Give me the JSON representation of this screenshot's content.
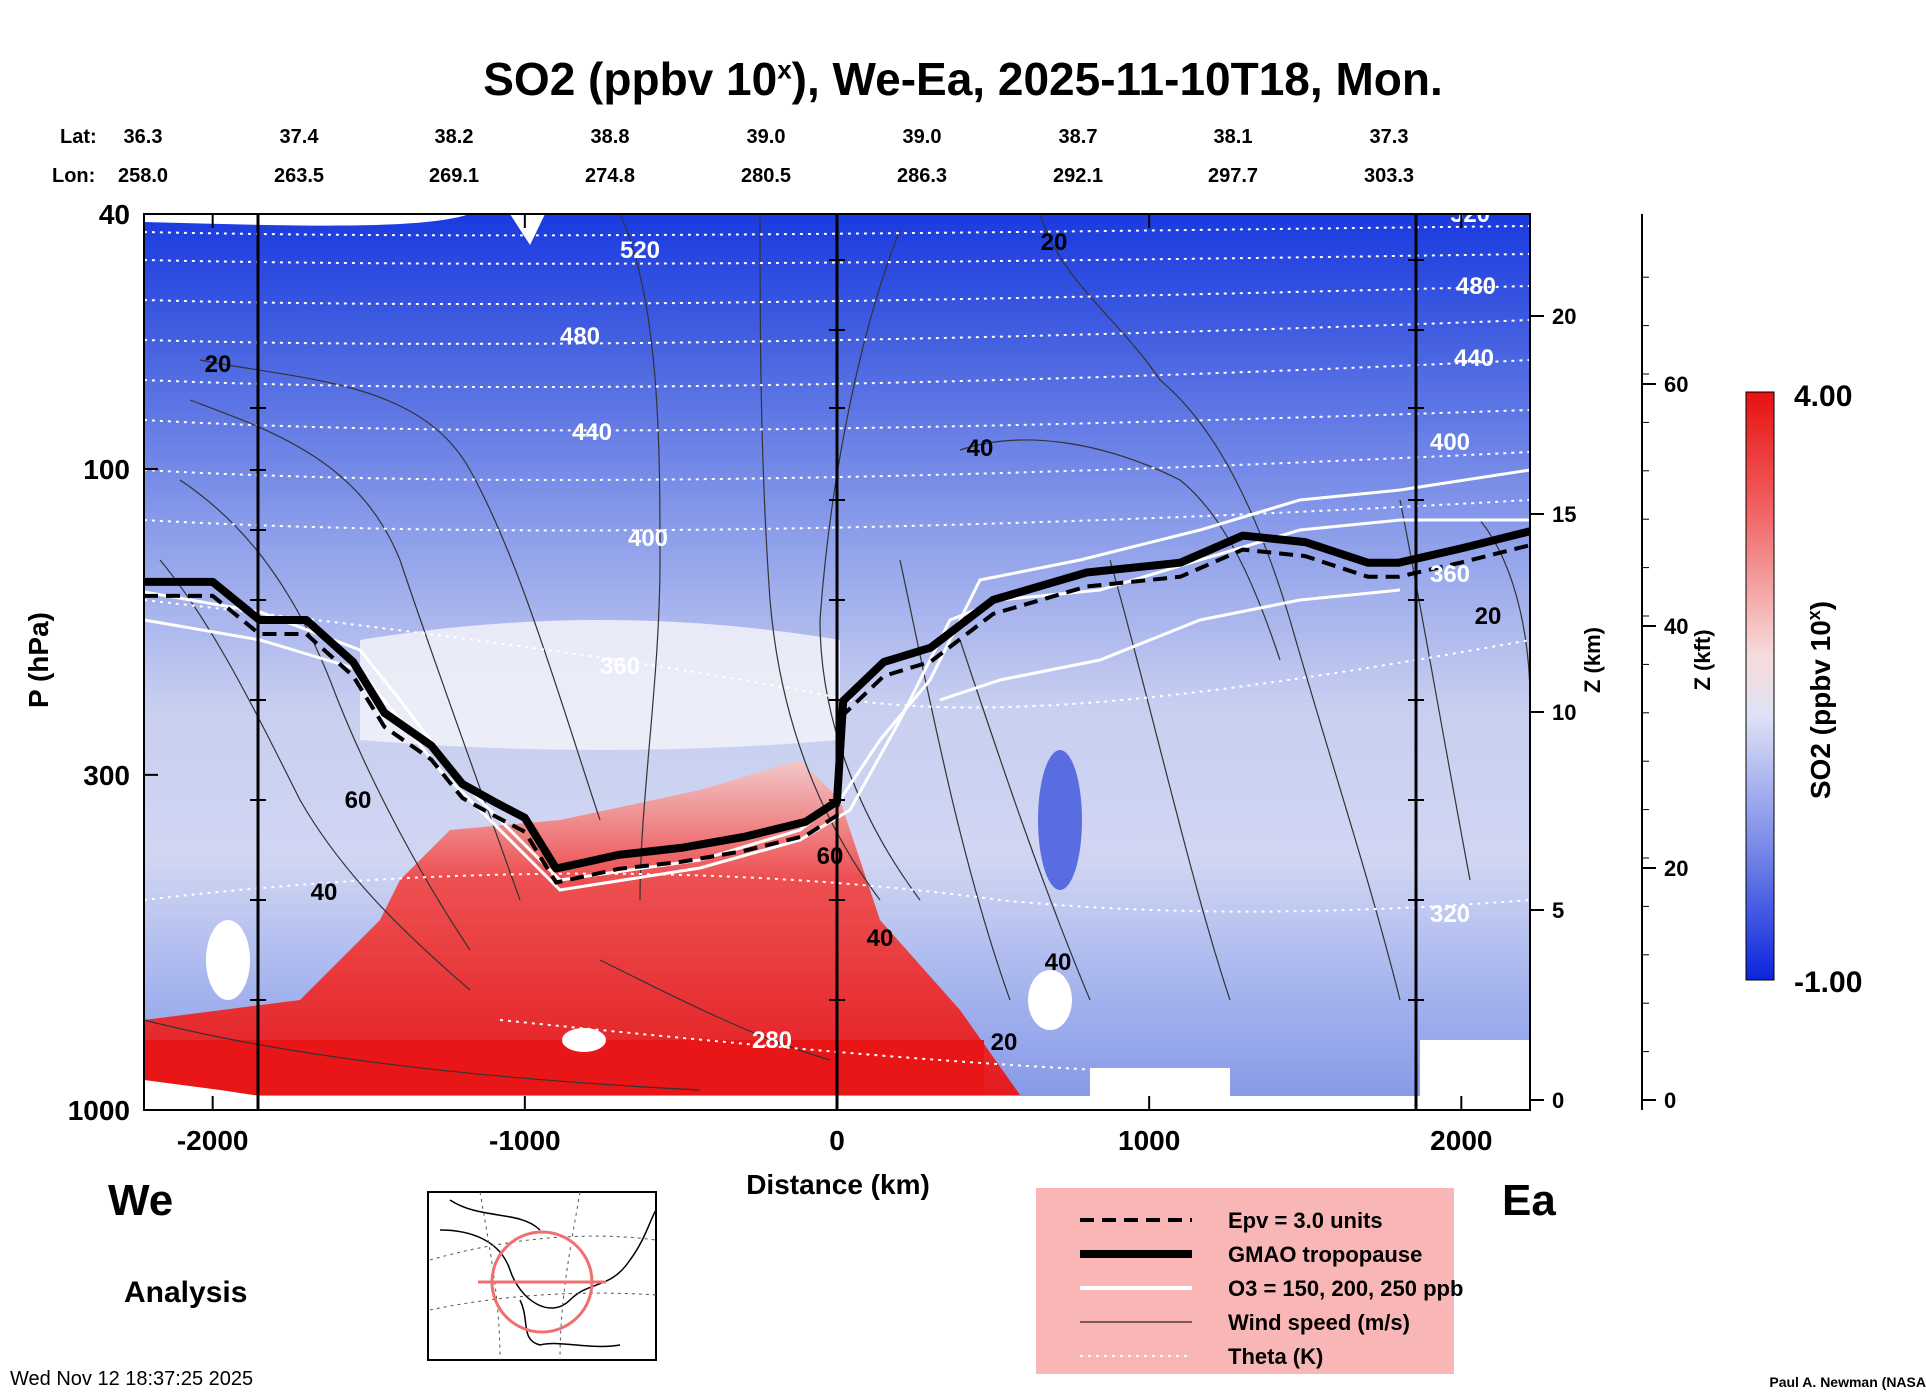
{
  "header": {
    "title_main": "SO2 (ppbv 10",
    "title_sup": "x",
    "title_rest": "), We-Ea, 2025-11-10T18, Mon.",
    "lat_label": "Lat:",
    "lon_label": "Lon:",
    "lat": [
      "36.3",
      "37.4",
      "38.2",
      "38.8",
      "39.0",
      "39.0",
      "38.7",
      "38.1",
      "37.3"
    ],
    "lon": [
      "258.0",
      "263.5",
      "269.1",
      "274.8",
      "280.5",
      "286.3",
      "292.1",
      "297.7",
      "303.3"
    ]
  },
  "chart_data": {
    "type": "heatmap",
    "variable": "SO2 (ppbv 10^x)",
    "xlabel": "Distance (km)",
    "ylabel": "P (hPa)",
    "xlim": [
      -2220,
      2220
    ],
    "ylim": [
      1000,
      40
    ],
    "yscale": "log",
    "x_ticks": [
      "-2000",
      "-1000",
      "0",
      "1000",
      "2000"
    ],
    "x_tick_values": [
      -2000,
      -1000,
      0,
      1000,
      2000
    ],
    "y_ticks": [
      "40",
      "100",
      "300",
      "1000"
    ],
    "y_tick_values": [
      40,
      100,
      300,
      1000
    ],
    "z_km_label": "Z (km)",
    "z_km_ticks": [
      "0",
      "5",
      "10",
      "15",
      "20"
    ],
    "z_kft_label": "Z (kft)",
    "z_kft_ticks": [
      "0",
      "20",
      "40",
      "60"
    ],
    "colorbar": {
      "min": -1.0,
      "max": 4.0,
      "min_label": "-1.00",
      "max_label": "4.00",
      "label_main": "SO2 (ppbv 10",
      "label_sup": "x",
      "label_rest": ")",
      "low_color": "#1030e0",
      "mid_color": "#f4f4f8",
      "high_color": "#ee1010"
    },
    "theta_levels": [
      "520",
      "480",
      "440",
      "400",
      "360",
      "320",
      "280"
    ],
    "wind_labels": [
      "20",
      "40",
      "60"
    ],
    "section_ends": {
      "left": "We",
      "right": "Ea"
    },
    "tropopause": [
      [
        -2220,
        150
      ],
      [
        -2000,
        150
      ],
      [
        -1850,
        172
      ],
      [
        -1700,
        172
      ],
      [
        -1550,
        200
      ],
      [
        -1450,
        240
      ],
      [
        -1300,
        270
      ],
      [
        -1200,
        310
      ],
      [
        -1100,
        330
      ],
      [
        -1000,
        350
      ],
      [
        -900,
        420
      ],
      [
        -800,
        410
      ],
      [
        -700,
        400
      ],
      [
        -500,
        390
      ],
      [
        -300,
        375
      ],
      [
        -100,
        355
      ],
      [
        0,
        330
      ],
      [
        20,
        230
      ],
      [
        150,
        200
      ],
      [
        300,
        190
      ],
      [
        500,
        160
      ],
      [
        800,
        145
      ],
      [
        1100,
        140
      ],
      [
        1300,
        127
      ],
      [
        1500,
        130
      ],
      [
        1700,
        140
      ],
      [
        1800,
        140
      ],
      [
        2000,
        133
      ],
      [
        2220,
        125
      ]
    ]
  },
  "legend": {
    "items": [
      "Epv = 3.0 units",
      "GMAO tropopause",
      "O3 = 150, 200, 250 ppb",
      "Wind speed (m/s)",
      "Theta (K)"
    ]
  },
  "footer": {
    "mode": "Analysis",
    "timestamp": "Wed Nov 12 18:37:25 2025",
    "credit": "Paul A. Newman (NASA"
  },
  "colors": {
    "so2_low": "#1030e0",
    "so2_high": "#ee1010",
    "legend_bg": "#f8b6b6"
  }
}
